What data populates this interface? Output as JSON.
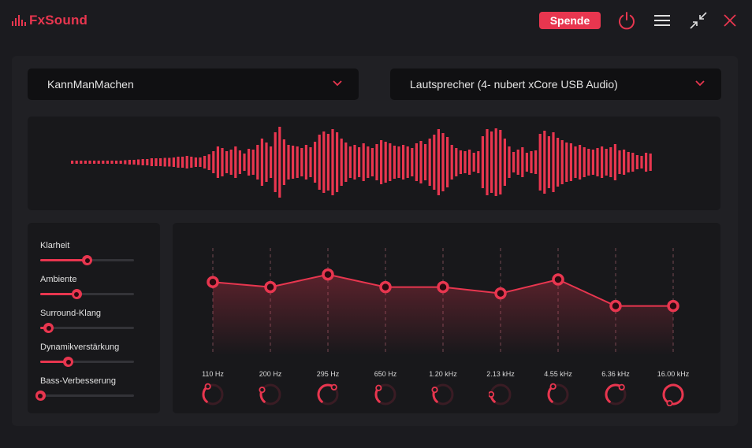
{
  "app": {
    "name": "FxSound"
  },
  "titlebar": {
    "donate_label": "Spende"
  },
  "colors": {
    "accent": "#e8364f",
    "background": "#1b1b1f",
    "panel": "#202024",
    "subpanel": "#18181b"
  },
  "icons": [
    "power-icon",
    "menu-icon",
    "minimize-arrows-icon",
    "close-icon",
    "chevron-down-icon"
  ],
  "preset": {
    "selected": "KannManMachen"
  },
  "output_device": {
    "selected": "Lautsprecher (4- nubert xCore USB Audio)"
  },
  "effects": [
    {
      "label": "Klarheit",
      "value": 0.5
    },
    {
      "label": "Ambiente",
      "value": 0.39
    },
    {
      "label": "Surround-Klang",
      "value": 0.09
    },
    {
      "label": "Dynamikverstärkung",
      "value": 0.3
    },
    {
      "label": "Bass-Verbesserung",
      "value": 0.0
    }
  ],
  "equalizer": {
    "bands": [
      {
        "freq": "110 Hz",
        "level": 0.58,
        "knob": 0.3
      },
      {
        "freq": "200 Hz",
        "level": 0.54,
        "knob": 0.22
      },
      {
        "freq": "295 Hz",
        "level": 0.64,
        "knob": 0.5
      },
      {
        "freq": "650 Hz",
        "level": 0.54,
        "knob": 0.26
      },
      {
        "freq": "1.20 kHz",
        "level": 0.54,
        "knob": 0.22
      },
      {
        "freq": "2.13 kHz",
        "level": 0.49,
        "knob": 0.14
      },
      {
        "freq": "4.55 kHz",
        "level": 0.6,
        "knob": 0.3
      },
      {
        "freq": "6.36 kHz",
        "level": 0.39,
        "knob": 0.5
      },
      {
        "freq": "16.00 kHz",
        "level": 0.39,
        "knob": 0.95
      }
    ]
  }
}
